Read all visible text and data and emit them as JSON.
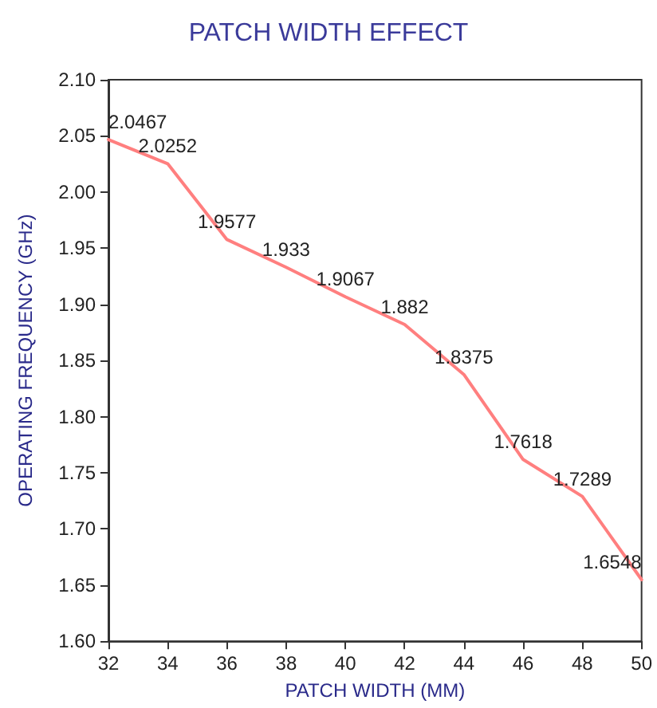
{
  "chart_data": {
    "type": "line",
    "title": "PATCH WIDTH EFFECT",
    "xlabel": "PATCH WIDTH (MM)",
    "ylabel": "OPERATING FREQUENCY (GHz)",
    "x": [
      32,
      34,
      36,
      38,
      40,
      42,
      44,
      46,
      48,
      50
    ],
    "series": [
      {
        "color": "#ff7f7f",
        "values": [
          2.0467,
          2.0252,
          1.9577,
          1.933,
          1.9067,
          1.882,
          1.8375,
          1.7618,
          1.7289,
          1.6548
        ]
      }
    ],
    "xlim": [
      32,
      50
    ],
    "xticks": [
      32,
      34,
      36,
      38,
      40,
      42,
      44,
      46,
      48,
      50
    ],
    "ylim": [
      1.6,
      2.1
    ],
    "yticks": [
      {
        "value": 1.6,
        "label": "1.60"
      },
      {
        "value": 1.65,
        "label": "1.65"
      },
      {
        "value": 1.7,
        "label": "1.70"
      },
      {
        "value": 1.75,
        "label": "1.75"
      },
      {
        "value": 1.8,
        "label": "1.80"
      },
      {
        "value": 1.85,
        "label": "1.85"
      },
      {
        "value": 1.9,
        "label": "1.90"
      },
      {
        "value": 1.95,
        "label": "1.95"
      },
      {
        "value": 2.0,
        "label": "2.00"
      },
      {
        "value": 2.05,
        "label": "2.05"
      },
      {
        "value": 2.1,
        "label": "2.10"
      }
    ],
    "data_labels": true,
    "grid": false,
    "marker": "none",
    "line_style": "solid"
  }
}
